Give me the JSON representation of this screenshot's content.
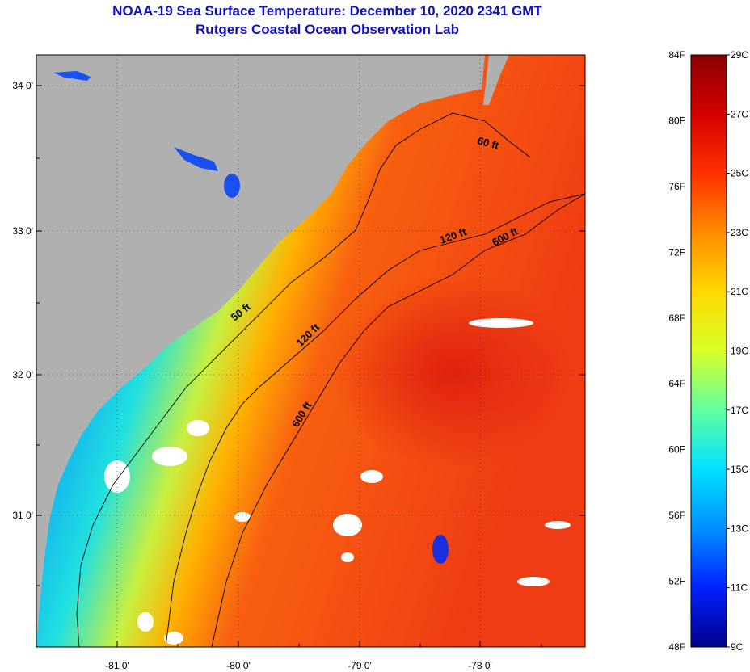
{
  "header": {
    "title": "NOAA-19 Sea Surface Temperature:  December 10, 2020 2341 GMT",
    "subtitle": "Rutgers Coastal Ocean Observation Lab"
  },
  "map": {
    "lon_labels": [
      "-81 0'",
      "-80 0'",
      "-79 0'",
      "-78 0'"
    ],
    "lat_labels": [
      "34 0'",
      "33 0'",
      "32 0'",
      "31 0'"
    ],
    "contours": [
      "50 ft",
      "120 ft",
      "600 ft",
      "60 ft",
      "120 ft",
      "600 ft"
    ],
    "colors": {
      "land": "#b0b0b0",
      "cloud": "#ffffff",
      "warm": "#f03c14",
      "coast_cold": "#1a3cf0"
    }
  },
  "colorbar": {
    "fahrenheit": [
      "84F",
      "80F",
      "76F",
      "72F",
      "68F",
      "64F",
      "60F",
      "56F",
      "52F",
      "48F"
    ],
    "celsius": [
      "29C",
      "27C",
      "25C",
      "23C",
      "21C",
      "19C",
      "17C",
      "15C",
      "13C",
      "11C",
      "9C"
    ],
    "colors": [
      "#8b0000",
      "#d40000",
      "#ff3000",
      "#ff8c00",
      "#ffd800",
      "#d8ff28",
      "#60ffa0",
      "#00e0ff",
      "#0090ff",
      "#0020ff",
      "#00008b"
    ]
  }
}
